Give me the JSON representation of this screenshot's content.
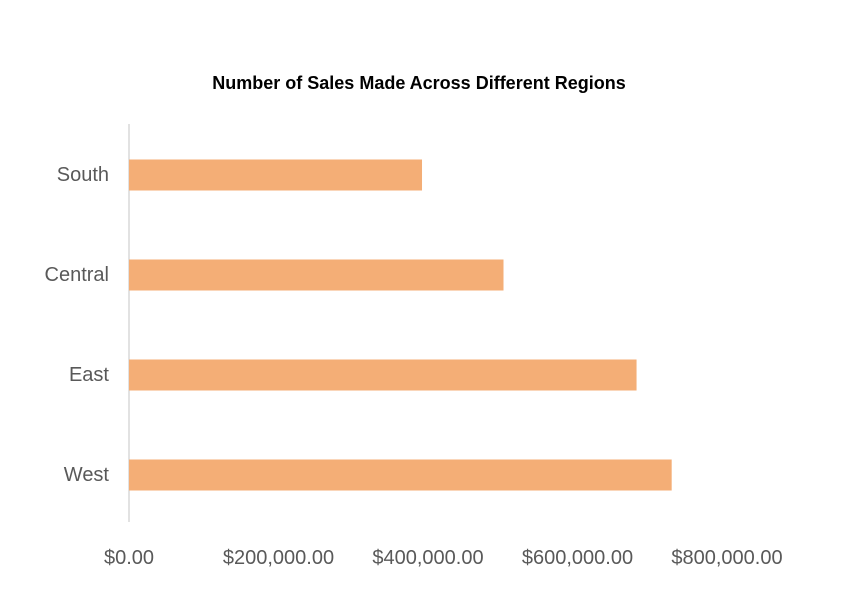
{
  "chart_data": {
    "type": "bar",
    "orientation": "horizontal",
    "title": "Number of Sales Made Across Different Regions",
    "xlabel": "",
    "ylabel": "",
    "categories": [
      "South",
      "Central",
      "East",
      "West"
    ],
    "values": [
      392000,
      501000,
      679000,
      726000
    ],
    "xlim": [
      0,
      900000
    ],
    "x_ticks": [
      0,
      200000,
      400000,
      600000,
      800000
    ],
    "x_tick_labels": [
      "$0.00",
      "$200,000.00",
      "$400,000.00",
      "$600,000.00",
      "$800,000.00"
    ],
    "grid": false,
    "legend": "none",
    "bar_color": "#F4AE76",
    "axis_color": "#D9D9D9"
  }
}
